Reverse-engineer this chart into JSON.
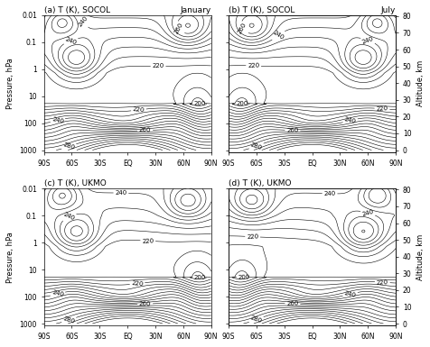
{
  "titles": [
    "(a) T (K), SOCOL",
    "(b) T (K), SOCOL",
    "(c) T (K), UKMO",
    "(d) T (K), UKMO"
  ],
  "season_labels": [
    "January",
    "July",
    "",
    ""
  ],
  "xlabel": [
    "90S",
    "60S",
    "30S",
    "EQ",
    "30N",
    "60N",
    "90N"
  ],
  "lat_values": [
    -90,
    -60,
    -30,
    0,
    30,
    60,
    90
  ],
  "pressure_ticks": [
    0.01,
    0.1,
    1,
    10,
    100,
    1000
  ],
  "pressure_tick_labels": [
    "0.01",
    "0.1",
    "1",
    "10",
    "100",
    "1000"
  ],
  "altitude_ticks": [
    0,
    10,
    20,
    30,
    40,
    50,
    60,
    70,
    80
  ],
  "contour_levels": [
    155,
    160,
    165,
    170,
    175,
    180,
    185,
    190,
    195,
    200,
    205,
    210,
    215,
    220,
    225,
    230,
    235,
    240,
    245,
    250,
    255,
    260,
    265,
    270,
    275,
    280,
    285,
    290,
    295,
    300
  ],
  "label_levels": [
    160,
    180,
    200,
    220,
    240,
    260,
    280
  ],
  "background_color": "#ffffff",
  "contour_color": "black",
  "linewidth": 0.4,
  "clabel_fontsize": 5
}
